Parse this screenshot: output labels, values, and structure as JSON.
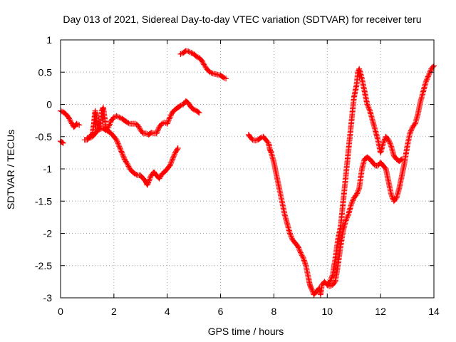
{
  "chart_data": {
    "type": "scatter",
    "title": "Day 013 of 2021, Sidereal Day-to-day VTEC variation (SDTVAR) for receiver teru",
    "xlabel": "GPS time / hours",
    "ylabel": "SDTVAR / TECUs",
    "xlim": [
      0,
      14
    ],
    "ylim": [
      -3,
      1
    ],
    "xticks": [
      0,
      2,
      4,
      6,
      8,
      10,
      12,
      14
    ],
    "xtick_labels": [
      "0",
      "2",
      "4",
      "6",
      "8",
      "10",
      "12",
      "14"
    ],
    "yticks": [
      1,
      0.5,
      0,
      -0.5,
      -1,
      -1.5,
      -2,
      -2.5,
      -3
    ],
    "ytick_labels": [
      "1",
      "0.5",
      "0",
      "-0.5",
      "-1",
      "-1.5",
      "-2",
      "-2.5",
      "-3"
    ],
    "grid": true,
    "marker": "plus",
    "color": "#ff0000",
    "series": [
      {
        "x": [
          0.0,
          0.1
        ],
        "y": [
          -0.57,
          -0.6
        ]
      },
      {
        "x": [
          0.0,
          0.1,
          0.2,
          0.3,
          0.4,
          0.5,
          0.55,
          0.6,
          0.7
        ],
        "y": [
          -0.1,
          -0.12,
          -0.15,
          -0.2,
          -0.28,
          -0.35,
          -0.33,
          -0.3,
          -0.32
        ]
      },
      {
        "x": [
          0.9,
          1.0,
          1.1,
          1.2,
          1.25,
          1.3,
          1.35,
          1.4,
          1.5,
          1.55,
          1.6,
          1.65,
          1.7,
          1.8,
          1.9,
          2.0,
          2.1,
          2.2,
          2.3,
          2.4,
          2.5,
          2.6,
          2.7,
          2.8,
          2.9,
          3.0,
          3.1,
          3.2,
          3.3,
          3.4,
          3.5,
          3.6,
          3.7,
          3.8,
          3.9,
          4.0,
          4.1,
          4.2,
          4.3,
          4.4,
          4.5,
          4.6,
          4.7,
          4.8,
          4.9,
          5.0,
          5.1,
          5.2
        ],
        "y": [
          -0.55,
          -0.55,
          -0.5,
          -0.45,
          -0.3,
          -0.1,
          -0.2,
          -0.4,
          -0.3,
          -0.1,
          -0.05,
          -0.2,
          -0.4,
          -0.35,
          -0.25,
          -0.2,
          -0.18,
          -0.2,
          -0.22,
          -0.25,
          -0.28,
          -0.3,
          -0.3,
          -0.3,
          -0.32,
          -0.4,
          -0.45,
          -0.45,
          -0.47,
          -0.44,
          -0.45,
          -0.45,
          -0.35,
          -0.3,
          -0.28,
          -0.3,
          -0.2,
          -0.12,
          -0.08,
          -0.05,
          -0.02,
          0.0,
          0.05,
          0.02,
          -0.05,
          -0.08,
          -0.1,
          -0.13
        ]
      },
      {
        "x": [
          1.0,
          1.1,
          1.2,
          1.3,
          1.4,
          1.5,
          1.6,
          1.7,
          1.8,
          1.9,
          2.0,
          2.1,
          2.2,
          2.3,
          2.4,
          2.5,
          2.6,
          2.7,
          2.8,
          2.9,
          3.0,
          3.1,
          3.2,
          3.25,
          3.3,
          3.4,
          3.5,
          3.6,
          3.7,
          3.8,
          3.9,
          4.0,
          4.1,
          4.2,
          4.3,
          4.4
        ],
        "y": [
          -0.52,
          -0.52,
          -0.5,
          -0.45,
          -0.4,
          -0.38,
          -0.37,
          -0.4,
          -0.42,
          -0.45,
          -0.5,
          -0.55,
          -0.65,
          -0.75,
          -0.85,
          -0.92,
          -1.0,
          -1.05,
          -1.08,
          -1.1,
          -1.1,
          -1.15,
          -1.2,
          -1.25,
          -1.2,
          -1.1,
          -1.05,
          -1.1,
          -1.15,
          -1.08,
          -1.05,
          -1.0,
          -0.95,
          -0.85,
          -0.75,
          -0.68
        ]
      },
      {
        "x": [
          4.5,
          4.6,
          4.7,
          4.8,
          4.9,
          5.0,
          5.1,
          5.2,
          5.3,
          5.4,
          5.5,
          5.6,
          5.7,
          5.8,
          5.9,
          6.0,
          6.1,
          6.2
        ],
        "y": [
          0.78,
          0.8,
          0.83,
          0.82,
          0.8,
          0.78,
          0.74,
          0.72,
          0.68,
          0.6,
          0.54,
          0.5,
          0.48,
          0.47,
          0.46,
          0.45,
          0.42,
          0.4
        ]
      },
      {
        "x": [
          7.05,
          7.1,
          7.2,
          7.3,
          7.4,
          7.5,
          7.6,
          7.7,
          7.8,
          7.85,
          7.9,
          8.0,
          8.1,
          8.2,
          8.3,
          8.4,
          8.5,
          8.6,
          8.7,
          8.8,
          8.9,
          9.0,
          9.1,
          9.2,
          9.3,
          9.35,
          9.4,
          9.5,
          9.6,
          9.7,
          9.75,
          9.8,
          9.9,
          10.0,
          10.1,
          10.2,
          10.3,
          10.4,
          10.5,
          10.6,
          10.7,
          10.8,
          10.9,
          11.0,
          11.1,
          11.2,
          11.3,
          11.4,
          11.5,
          11.6,
          11.7,
          11.8,
          11.9,
          12.0,
          12.1,
          12.2,
          12.3,
          12.4,
          12.5,
          12.6,
          12.7,
          12.8,
          12.9,
          13.0,
          13.1,
          13.2,
          13.3,
          13.4,
          13.5,
          13.6,
          13.7,
          13.8,
          13.9,
          14.0
        ],
        "y": [
          -0.47,
          -0.5,
          -0.55,
          -0.56,
          -0.55,
          -0.52,
          -0.5,
          -0.55,
          -0.6,
          -0.7,
          -0.75,
          -0.9,
          -1.1,
          -1.3,
          -1.5,
          -1.7,
          -1.85,
          -2.0,
          -2.1,
          -2.15,
          -2.2,
          -2.3,
          -2.38,
          -2.5,
          -2.7,
          -2.8,
          -2.85,
          -2.95,
          -2.9,
          -2.85,
          -2.95,
          -2.8,
          -2.75,
          -2.8,
          -2.82,
          -2.8,
          -2.75,
          -2.5,
          -2.2,
          -1.95,
          -1.8,
          -1.7,
          -1.55,
          -1.45,
          -1.4,
          -1.3,
          -1.0,
          -0.85,
          -0.82,
          -0.85,
          -0.9,
          -0.95,
          -0.95,
          -0.9,
          -0.95,
          -1.0,
          -1.2,
          -1.4,
          -1.5,
          -1.45,
          -1.3,
          -1.1,
          -0.9,
          -0.65,
          -0.45,
          -0.35,
          -0.3,
          -0.15,
          0.05,
          0.2,
          0.35,
          0.45,
          0.55,
          0.6
        ]
      },
      {
        "x": [
          10.0,
          10.1,
          10.2,
          10.3,
          10.4,
          10.5,
          10.6,
          10.7,
          10.8,
          10.9,
          11.0,
          11.1,
          11.15,
          11.2,
          11.3,
          11.4,
          11.5,
          11.6,
          11.7,
          11.8,
          11.9,
          12.0,
          12.1,
          12.2,
          12.3,
          12.4,
          12.5,
          12.6,
          12.7,
          12.8
        ],
        "y": [
          -2.8,
          -2.75,
          -2.65,
          -2.4,
          -2.1,
          -1.9,
          -1.5,
          -1.1,
          -0.7,
          -0.3,
          0.1,
          0.3,
          0.5,
          0.55,
          0.4,
          0.2,
          0.0,
          -0.1,
          -0.25,
          -0.4,
          -0.55,
          -0.75,
          -0.6,
          -0.5,
          -0.55,
          -0.65,
          -0.8,
          -0.85,
          -0.88,
          -0.85
        ]
      }
    ]
  }
}
